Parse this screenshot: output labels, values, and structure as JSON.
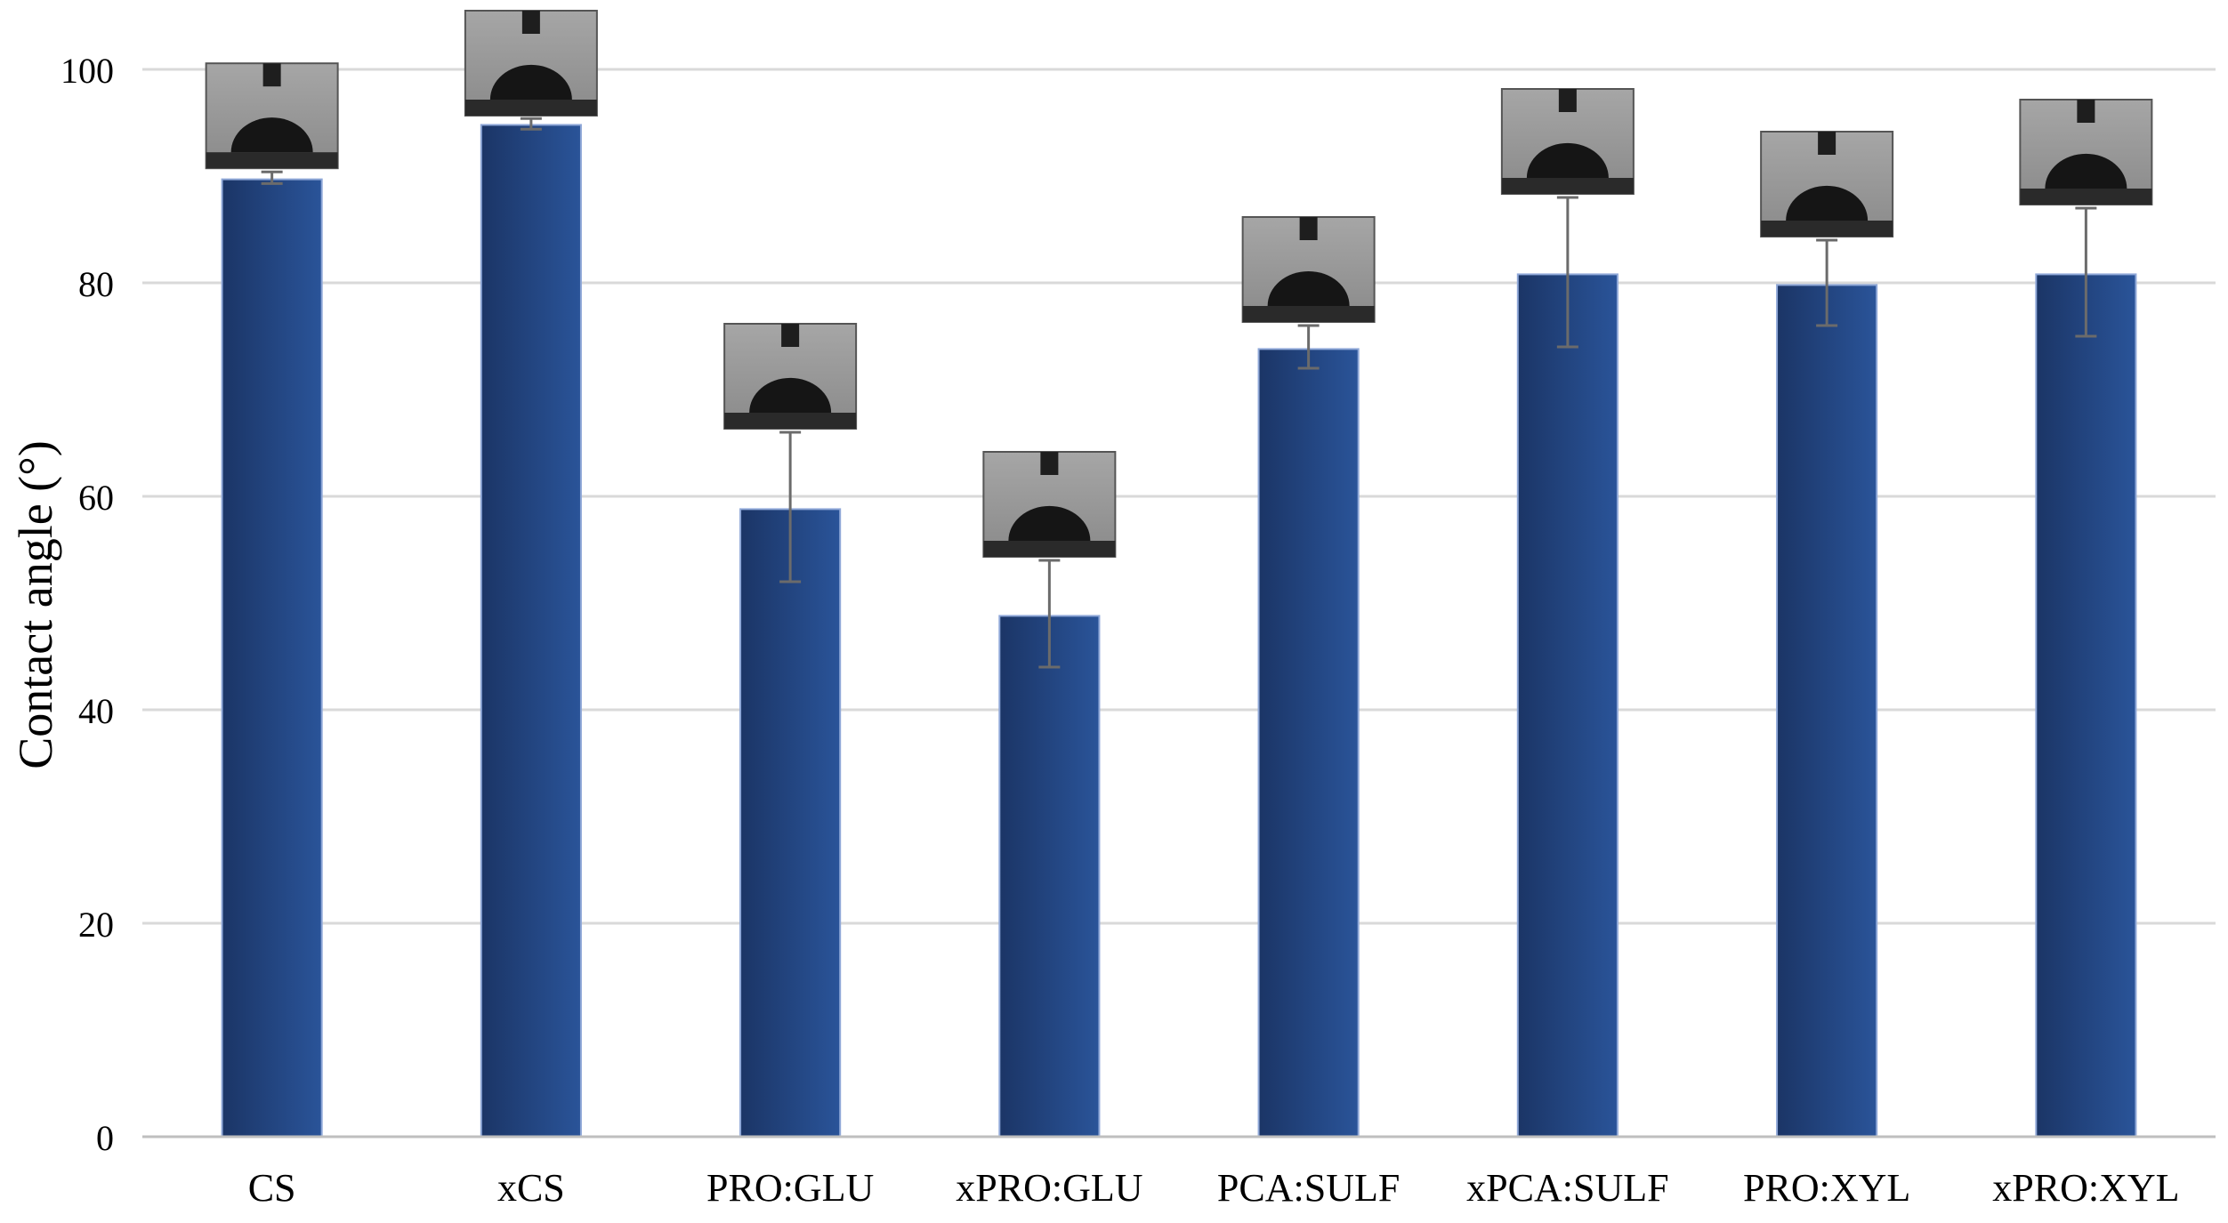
{
  "chart_data": {
    "type": "bar",
    "title": "",
    "xlabel": "",
    "ylabel": "Contact angle (°)",
    "ylim": [
      0,
      100
    ],
    "yticks": [
      0,
      20,
      40,
      60,
      80,
      100
    ],
    "grid": true,
    "legend": "none",
    "categories": [
      "CS",
      "xCS",
      "PRO:GLU",
      "xPRO:GLU",
      "PCA:SULF",
      "xPCA:SULF",
      "PRO:XYL",
      "xPRO:XYL"
    ],
    "values": [
      89.7,
      94.8,
      58.8,
      48.8,
      73.8,
      80.8,
      79.8,
      80.8
    ],
    "error_low": [
      89.3,
      94.4,
      52.0,
      44.0,
      72.0,
      74.0,
      76.0,
      75.0
    ],
    "error_high": [
      90.4,
      95.4,
      66.0,
      54.0,
      76.0,
      88.0,
      84.0,
      87.0
    ],
    "inset_images": "droplet photograph above each bar",
    "colors": {
      "bar_dark": "#1b3566",
      "bar_light": "#2a5499",
      "bar_edge": "#8fa8d8",
      "grid": "#d9d9d9",
      "axis": "#bfbfbf",
      "error_bar": "#6b6b6b"
    }
  }
}
